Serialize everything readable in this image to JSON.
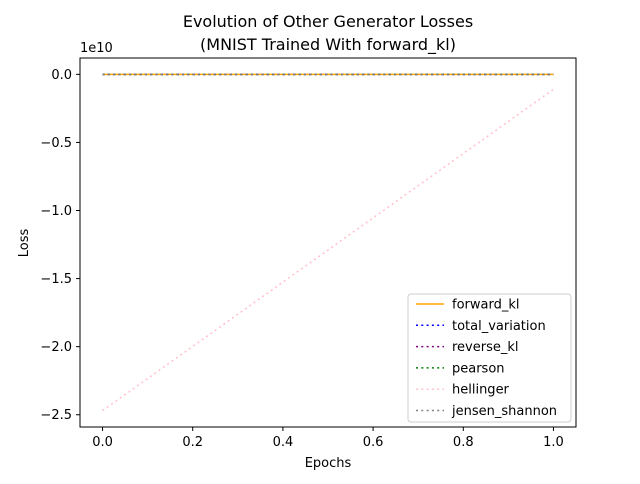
{
  "chart_data": {
    "type": "line",
    "title_line1": "Evolution of Other Generator Losses",
    "title_line2": "(MNIST Trained With forward_kl)",
    "xlabel": "Epochs",
    "ylabel": "Loss",
    "y_offset_label": "1e10",
    "xlim": [
      -0.05,
      1.05
    ],
    "ylim": [
      -2.59,
      0.12
    ],
    "x_ticks": [
      0.0,
      0.2,
      0.4,
      0.6,
      0.8,
      1.0
    ],
    "x_tick_labels": [
      "0.0",
      "0.2",
      "0.4",
      "0.6",
      "0.8",
      "1.0"
    ],
    "y_ticks": [
      0.0,
      -0.5,
      -1.0,
      -1.5,
      -2.0,
      -2.5
    ],
    "y_tick_labels": [
      "0.0",
      "−0.5",
      "−1.0",
      "−1.5",
      "−2.0",
      "−2.5"
    ],
    "legend_position": "lower-right",
    "series": [
      {
        "name": "forward_kl",
        "x": [
          0,
          1
        ],
        "y": [
          0.0,
          0.0
        ],
        "color": "#ffa500",
        "dash": "solid"
      },
      {
        "name": "total_variation",
        "x": [
          0,
          1
        ],
        "y": [
          0.0,
          0.0
        ],
        "color": "#0000ff",
        "dash": "dotted"
      },
      {
        "name": "reverse_kl",
        "x": [
          0,
          1
        ],
        "y": [
          0.0,
          0.0
        ],
        "color": "#800080",
        "dash": "dotted"
      },
      {
        "name": "pearson",
        "x": [
          0,
          1
        ],
        "y": [
          0.0,
          0.0
        ],
        "color": "#008000",
        "dash": "dotted"
      },
      {
        "name": "hellinger",
        "x": [
          0,
          1
        ],
        "y": [
          -2.47,
          -0.11
        ],
        "color": "#ffc0cb",
        "dash": "dotted"
      },
      {
        "name": "jensen_shannon",
        "x": [
          0,
          1
        ],
        "y": [
          0.0,
          0.0
        ],
        "color": "#808080",
        "dash": "dotted"
      }
    ]
  }
}
